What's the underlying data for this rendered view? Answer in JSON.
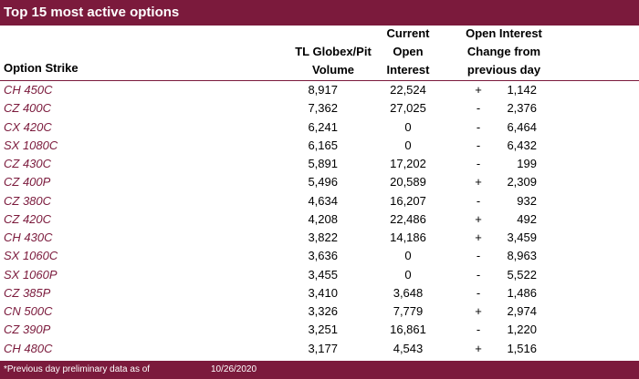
{
  "title": "Top 15 most active options",
  "headers": {
    "strike": "Option Strike",
    "volume": [
      "TL Globex/Pit",
      "Volume"
    ],
    "open_interest": [
      "Current",
      "Open",
      "Interest"
    ],
    "oi_change": [
      "Open Interest",
      "Change from",
      "previous day"
    ]
  },
  "rows": [
    {
      "strike": "CH 450C",
      "volume": "8,917",
      "oi": "22,524",
      "sign": "+",
      "change": "1,142"
    },
    {
      "strike": "CZ 400C",
      "volume": "7,362",
      "oi": "27,025",
      "sign": "-",
      "change": "2,376"
    },
    {
      "strike": "CX 420C",
      "volume": "6,241",
      "oi": "0",
      "sign": "-",
      "change": "6,464"
    },
    {
      "strike": "SX 1080C",
      "volume": "6,165",
      "oi": "0",
      "sign": "-",
      "change": "6,432"
    },
    {
      "strike": "CZ 430C",
      "volume": "5,891",
      "oi": "17,202",
      "sign": "-",
      "change": "199"
    },
    {
      "strike": "CZ 400P",
      "volume": "5,496",
      "oi": "20,589",
      "sign": "+",
      "change": "2,309"
    },
    {
      "strike": "CZ 380C",
      "volume": "4,634",
      "oi": "16,207",
      "sign": "-",
      "change": "932"
    },
    {
      "strike": "CZ 420C",
      "volume": "4,208",
      "oi": "22,486",
      "sign": "+",
      "change": "492"
    },
    {
      "strike": "CH 430C",
      "volume": "3,822",
      "oi": "14,186",
      "sign": "+",
      "change": "3,459"
    },
    {
      "strike": "SX 1060C",
      "volume": "3,636",
      "oi": "0",
      "sign": "-",
      "change": "8,963"
    },
    {
      "strike": "SX 1060P",
      "volume": "3,455",
      "oi": "0",
      "sign": "-",
      "change": "5,522"
    },
    {
      "strike": "CZ 385P",
      "volume": "3,410",
      "oi": "3,648",
      "sign": "-",
      "change": "1,486"
    },
    {
      "strike": "CN 500C",
      "volume": "3,326",
      "oi": "7,779",
      "sign": "+",
      "change": "2,974"
    },
    {
      "strike": "CZ 390P",
      "volume": "3,251",
      "oi": "16,861",
      "sign": "-",
      "change": "1,220"
    },
    {
      "strike": "CH 480C",
      "volume": "3,177",
      "oi": "4,543",
      "sign": "+",
      "change": "1,516"
    }
  ],
  "footer": {
    "note": "*Previous day preliminary data as of",
    "date": "10/26/2020"
  },
  "colors": {
    "accent": "#7b1a3c",
    "header_text": "#ffffff"
  }
}
